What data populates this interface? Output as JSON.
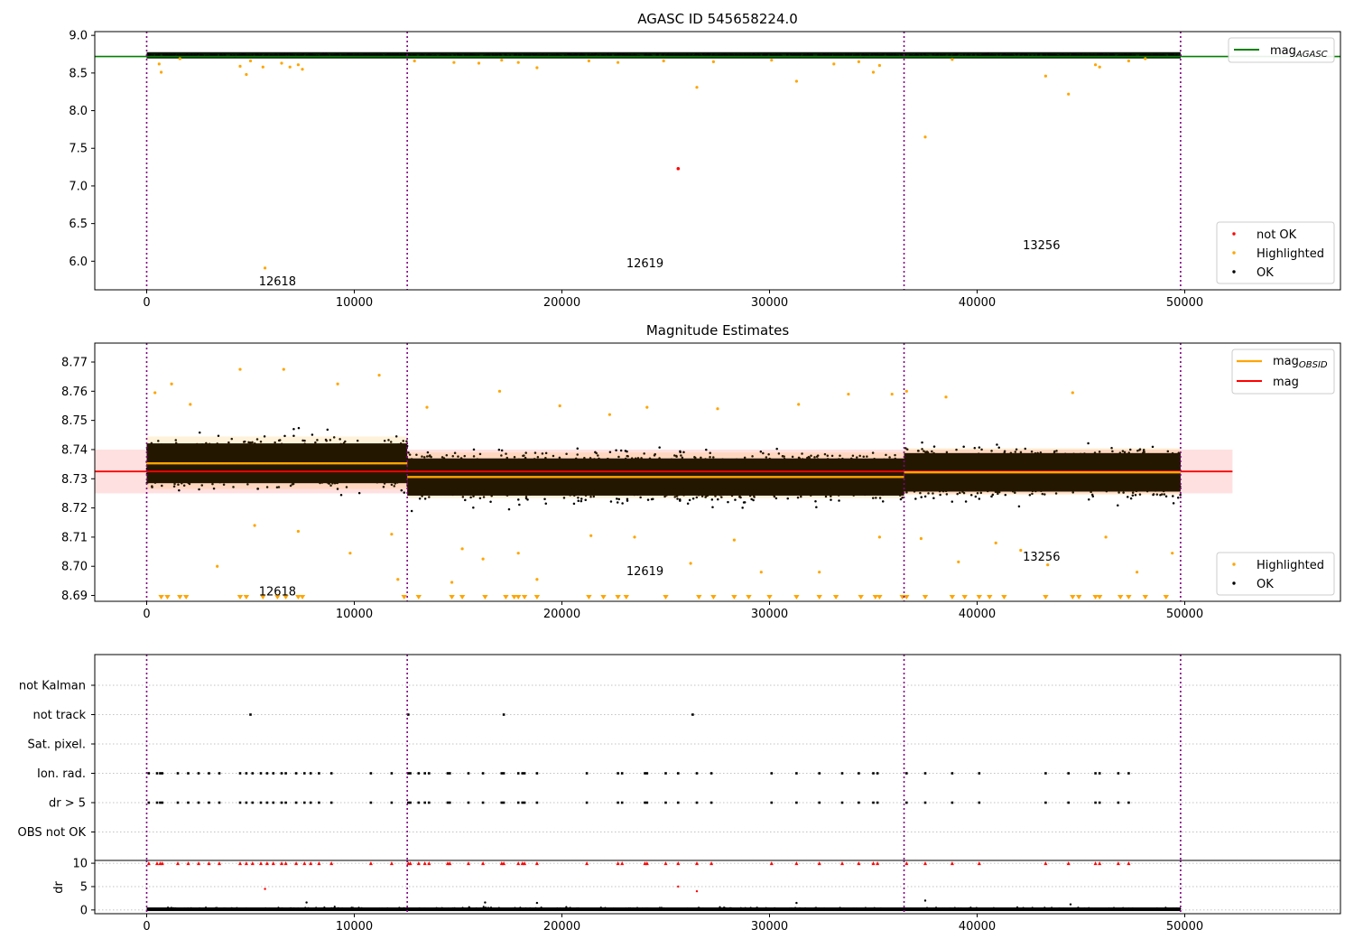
{
  "chart_data": [
    {
      "type": "scatter",
      "title": "AGASC ID 545658224.0",
      "xlim": [
        -2500,
        57500
      ],
      "ylim": [
        5.62,
        9.05
      ],
      "x_ticks": [
        0,
        10000,
        20000,
        30000,
        40000,
        50000
      ],
      "x_tick_labels": [
        "0",
        "10000",
        "20000",
        "30000",
        "40000",
        "50000"
      ],
      "y_ticks": [
        6.0,
        6.5,
        7.0,
        7.5,
        8.0,
        8.5,
        9.0
      ],
      "y_tick_labels": [
        "6.0",
        "6.5",
        "7.0",
        "7.5",
        "8.0",
        "8.5",
        "9.0"
      ],
      "obsid_boundaries": [
        0,
        12550,
        36480,
        49800
      ],
      "obsid_annotations": [
        {
          "text": "12618",
          "x": 6300,
          "y": 5.74
        },
        {
          "text": "12619",
          "x": 24000,
          "y": 5.98
        },
        {
          "text": "13256",
          "x": 43100,
          "y": 6.22
        }
      ],
      "mag_agasc": 8.72,
      "ok_band": {
        "x": [
          0,
          49800
        ],
        "center": 8.735,
        "spread": 0.01
      },
      "highlighted_points": [
        {
          "x": 700,
          "y": 8.51
        },
        {
          "x": 600,
          "y": 8.62
        },
        {
          "x": 1600,
          "y": 8.69
        },
        {
          "x": 4500,
          "y": 8.59
        },
        {
          "x": 4800,
          "y": 8.48
        },
        {
          "x": 5000,
          "y": 8.66
        },
        {
          "x": 5600,
          "y": 8.58
        },
        {
          "x": 5700,
          "y": 5.91
        },
        {
          "x": 6500,
          "y": 8.63
        },
        {
          "x": 6900,
          "y": 8.58
        },
        {
          "x": 7300,
          "y": 8.61
        },
        {
          "x": 7500,
          "y": 8.55
        },
        {
          "x": 12900,
          "y": 8.66
        },
        {
          "x": 14800,
          "y": 8.64
        },
        {
          "x": 16000,
          "y": 8.63
        },
        {
          "x": 17100,
          "y": 8.67
        },
        {
          "x": 17900,
          "y": 8.64
        },
        {
          "x": 18800,
          "y": 8.57
        },
        {
          "x": 21300,
          "y": 8.66
        },
        {
          "x": 22700,
          "y": 8.64
        },
        {
          "x": 24900,
          "y": 8.66
        },
        {
          "x": 26500,
          "y": 8.31
        },
        {
          "x": 27300,
          "y": 8.65
        },
        {
          "x": 30100,
          "y": 8.67
        },
        {
          "x": 31300,
          "y": 8.39
        },
        {
          "x": 33100,
          "y": 8.62
        },
        {
          "x": 34300,
          "y": 8.65
        },
        {
          "x": 35000,
          "y": 8.51
        },
        {
          "x": 35300,
          "y": 8.6
        },
        {
          "x": 37500,
          "y": 7.65
        },
        {
          "x": 38800,
          "y": 8.68
        },
        {
          "x": 43300,
          "y": 8.46
        },
        {
          "x": 44400,
          "y": 8.22
        },
        {
          "x": 45700,
          "y": 8.61
        },
        {
          "x": 45900,
          "y": 8.58
        },
        {
          "x": 47300,
          "y": 8.66
        },
        {
          "x": 48100,
          "y": 8.69
        }
      ],
      "not_ok_points": [
        {
          "x": 25600,
          "y": 7.23
        }
      ],
      "legends": [
        {
          "position": "upper right",
          "entries": [
            {
              "label": "mag",
              "label_sub": "AGASC",
              "color": "#008000",
              "marker": "line"
            }
          ]
        },
        {
          "position": "lower right",
          "entries": [
            {
              "label": "not OK",
              "color": "#ff0000",
              "marker": "dot"
            },
            {
              "label": "Highlighted",
              "color": "#ffa500",
              "marker": "dot"
            },
            {
              "label": "OK",
              "color": "#000000",
              "marker": "dot"
            }
          ]
        }
      ]
    },
    {
      "type": "scatter",
      "title": "Magnitude Estimates",
      "xlim": [
        -2500,
        57500
      ],
      "ylim": [
        8.688,
        8.7765
      ],
      "x_ticks": [
        0,
        10000,
        20000,
        30000,
        40000,
        50000
      ],
      "x_tick_labels": [
        "0",
        "10000",
        "20000",
        "30000",
        "40000",
        "50000"
      ],
      "y_ticks": [
        8.69,
        8.7,
        8.71,
        8.72,
        8.73,
        8.74,
        8.75,
        8.76,
        8.77
      ],
      "y_tick_labels": [
        "8.69",
        "8.70",
        "8.71",
        "8.72",
        "8.73",
        "8.74",
        "8.75",
        "8.76",
        "8.77"
      ],
      "obsid_boundaries": [
        0,
        12550,
        36480,
        49800
      ],
      "obsid_annotations": [
        {
          "text": "12618",
          "x": 6300,
          "y": 8.6915
        },
        {
          "text": "12619",
          "x": 24000,
          "y": 8.6985
        },
        {
          "text": "13256",
          "x": 43100,
          "y": 8.7035
        }
      ],
      "mag": 8.7325,
      "mag_band": [
        8.725,
        8.74
      ],
      "mag_band_xlim": [
        -2500,
        52300
      ],
      "mag_obsid_segments": [
        {
          "obsid": "12618",
          "x": [
            0,
            12550
          ],
          "y": 8.7353,
          "band": [
            8.7265,
            8.7445
          ]
        },
        {
          "obsid": "12619",
          "x": [
            12550,
            36480
          ],
          "y": 8.7306,
          "band": [
            8.7233,
            8.739
          ]
        },
        {
          "obsid": "13256",
          "x": [
            36480,
            49800
          ],
          "y": 8.7322,
          "band": [
            8.7245,
            8.7405
          ]
        }
      ],
      "ok_clouds": [
        {
          "x": [
            0,
            12550
          ],
          "center": 8.7353,
          "spread": 0.0062
        },
        {
          "x": [
            12550,
            36480
          ],
          "center": 8.7306,
          "spread": 0.0058
        },
        {
          "x": [
            36480,
            49800
          ],
          "center": 8.7322,
          "spread": 0.006
        }
      ],
      "highlighted_points": [
        {
          "x": 400,
          "y": 8.7595
        },
        {
          "x": 1200,
          "y": 8.7625
        },
        {
          "x": 2100,
          "y": 8.7555
        },
        {
          "x": 3400,
          "y": 8.7
        },
        {
          "x": 4500,
          "y": 8.7675
        },
        {
          "x": 5200,
          "y": 8.714
        },
        {
          "x": 6600,
          "y": 8.7675
        },
        {
          "x": 7300,
          "y": 8.712
        },
        {
          "x": 9200,
          "y": 8.7625
        },
        {
          "x": 9800,
          "y": 8.7045
        },
        {
          "x": 11200,
          "y": 8.7655
        },
        {
          "x": 11800,
          "y": 8.711
        },
        {
          "x": 12100,
          "y": 8.6955
        },
        {
          "x": 13500,
          "y": 8.7545
        },
        {
          "x": 14700,
          "y": 8.6945
        },
        {
          "x": 15200,
          "y": 8.706
        },
        {
          "x": 16200,
          "y": 8.7025
        },
        {
          "x": 17000,
          "y": 8.76
        },
        {
          "x": 17900,
          "y": 8.7045
        },
        {
          "x": 18800,
          "y": 8.6955
        },
        {
          "x": 19900,
          "y": 8.755
        },
        {
          "x": 21400,
          "y": 8.7105
        },
        {
          "x": 22300,
          "y": 8.752
        },
        {
          "x": 23500,
          "y": 8.71
        },
        {
          "x": 24100,
          "y": 8.7545
        },
        {
          "x": 26200,
          "y": 8.701
        },
        {
          "x": 27500,
          "y": 8.754
        },
        {
          "x": 28300,
          "y": 8.709
        },
        {
          "x": 29600,
          "y": 8.698
        },
        {
          "x": 31400,
          "y": 8.7555
        },
        {
          "x": 32400,
          "y": 8.698
        },
        {
          "x": 33800,
          "y": 8.759
        },
        {
          "x": 35300,
          "y": 8.71
        },
        {
          "x": 35900,
          "y": 8.759
        },
        {
          "x": 36600,
          "y": 8.76
        },
        {
          "x": 37300,
          "y": 8.7095
        },
        {
          "x": 38500,
          "y": 8.758
        },
        {
          "x": 39100,
          "y": 8.7015
        },
        {
          "x": 40900,
          "y": 8.708
        },
        {
          "x": 42100,
          "y": 8.7055
        },
        {
          "x": 43400,
          "y": 8.7005
        },
        {
          "x": 44600,
          "y": 8.7595
        },
        {
          "x": 46200,
          "y": 8.71
        },
        {
          "x": 47700,
          "y": 8.698
        },
        {
          "x": 49400,
          "y": 8.7045
        }
      ],
      "below_range_markers_x": [
        700,
        1000,
        1600,
        1900,
        4500,
        4800,
        5600,
        6300,
        6700,
        7300,
        7500,
        12400,
        13100,
        14700,
        15200,
        16300,
        17300,
        17700,
        17900,
        18200,
        18800,
        21300,
        22000,
        22700,
        23100,
        25000,
        26600,
        27300,
        28300,
        29000,
        30000,
        31300,
        32400,
        33200,
        34400,
        35100,
        35300,
        36400,
        36600,
        37500,
        38800,
        39400,
        40100,
        40600,
        41300,
        43300,
        44600,
        44900,
        45700,
        45900,
        46900,
        47300,
        48100,
        49100
      ],
      "legends": [
        {
          "position": "upper right",
          "entries": [
            {
              "label": "mag",
              "label_sub": "OBSID",
              "color": "#ffa500",
              "marker": "line"
            },
            {
              "label": "mag",
              "color": "#ff0000",
              "marker": "line"
            }
          ]
        },
        {
          "position": "lower right",
          "entries": [
            {
              "label": "Highlighted",
              "color": "#ffa500",
              "marker": "dot"
            },
            {
              "label": "OK",
              "color": "#000000",
              "marker": "dot"
            }
          ]
        }
      ]
    },
    {
      "type": "scatter",
      "xlim": [
        -2500,
        57500
      ],
      "y_categories": [
        "not Kalman",
        "not track",
        "Sat. pixel.",
        "Ion. rad.",
        "dr > 5",
        "OBS not OK"
      ],
      "obsid_boundaries": [
        0,
        12550,
        36480,
        49800
      ],
      "flag_points": {
        "not track": [
          5000,
          12600,
          17200,
          26300
        ],
        "Ion. rad.": [
          100,
          500,
          650,
          750,
          1500,
          2000,
          2500,
          3000,
          3500,
          4500,
          4800,
          5100,
          5500,
          5800,
          6100,
          6500,
          6700,
          7200,
          7600,
          7900,
          8300,
          8900,
          10800,
          11800,
          12600,
          12700,
          13100,
          13400,
          13600,
          14500,
          14600,
          15500,
          16200,
          17100,
          17200,
          17900,
          18100,
          18200,
          18800,
          21200,
          22700,
          22900,
          24000,
          24100,
          25000,
          25600,
          26500,
          27200,
          30100,
          31300,
          32400,
          33500,
          34300,
          35000,
          35200,
          36600,
          37500,
          38800,
          40100,
          43300,
          44400,
          45700,
          45900,
          46800,
          47300
        ],
        "dr > 5": [
          100,
          500,
          650,
          750,
          1500,
          2000,
          2500,
          3000,
          3500,
          4500,
          4800,
          5100,
          5500,
          5800,
          6100,
          6500,
          6700,
          7200,
          7600,
          7900,
          8300,
          8900,
          10800,
          11800,
          12600,
          12700,
          13100,
          13400,
          13600,
          14500,
          14600,
          15500,
          16200,
          17100,
          17200,
          17900,
          18100,
          18200,
          18800,
          21200,
          22700,
          22900,
          24000,
          24100,
          25000,
          25600,
          26500,
          27200,
          30100,
          31300,
          32400,
          33500,
          34300,
          35000,
          35200,
          36600,
          37500,
          38800,
          40100,
          43300,
          44400,
          45700,
          45900,
          46800,
          47300
        ]
      }
    },
    {
      "type": "scatter",
      "ylabel": "dr",
      "xlim": [
        -2500,
        57500
      ],
      "ylim": [
        -0.8,
        10.6
      ],
      "x_ticks": [
        0,
        10000,
        20000,
        30000,
        40000,
        50000
      ],
      "x_tick_labels": [
        "0",
        "10000",
        "20000",
        "30000",
        "40000",
        "50000"
      ],
      "y_ticks": [
        0,
        5,
        10
      ],
      "y_tick_labels": [
        "0",
        "5",
        "10"
      ],
      "obsid_boundaries": [
        0,
        12550,
        36480,
        49800
      ],
      "saturated_value": 10,
      "saturated_points_x": [
        100,
        500,
        650,
        750,
        1500,
        2000,
        2500,
        3000,
        3500,
        4500,
        4800,
        5100,
        5500,
        5800,
        6100,
        6500,
        6700,
        7200,
        7600,
        7900,
        8300,
        8900,
        10800,
        11800,
        12600,
        12700,
        13100,
        13400,
        13600,
        14500,
        14600,
        15500,
        16200,
        17100,
        17200,
        17900,
        18100,
        18200,
        18800,
        21200,
        22700,
        22900,
        24000,
        24100,
        25000,
        25600,
        26500,
        27200,
        30100,
        31300,
        32400,
        33500,
        34300,
        35000,
        35200,
        36600,
        37500,
        38800,
        40100,
        43300,
        44400,
        45700,
        45900,
        46800,
        47300
      ],
      "moderate_points": [
        {
          "x": 5700,
          "y": 4.5
        },
        {
          "x": 25600,
          "y": 5.0
        },
        {
          "x": 26500,
          "y": 4.0
        },
        {
          "x": 37500,
          "y": 2.0
        },
        {
          "x": 7700,
          "y": 1.6
        },
        {
          "x": 16300,
          "y": 1.6
        },
        {
          "x": 18800,
          "y": 1.5
        },
        {
          "x": 31300,
          "y": 1.5
        },
        {
          "x": 44500,
          "y": 1.2
        }
      ],
      "baseline": {
        "x": [
          0,
          49800
        ],
        "center": 0.15,
        "spread": 0.2
      }
    }
  ]
}
